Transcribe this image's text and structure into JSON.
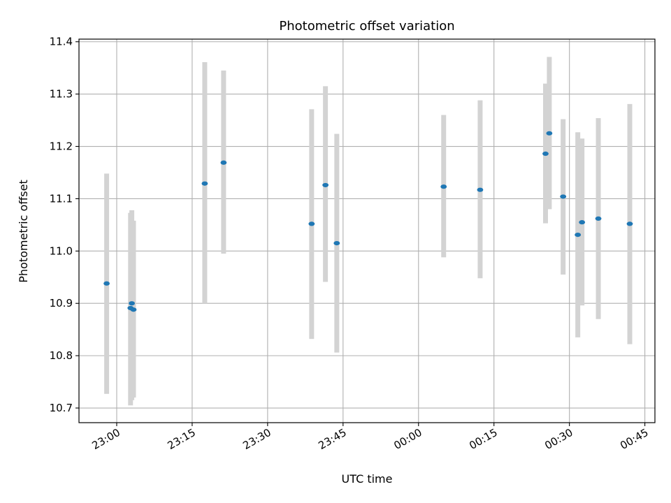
{
  "chart_data": {
    "type": "scatter",
    "title": "Photometric offset variation",
    "xlabel": "UTC time",
    "ylabel": "Photometric offset",
    "x_axis_kind": "time",
    "xlim": [
      "22:52:30",
      "00:47:00"
    ],
    "ylim": [
      10.672,
      11.405
    ],
    "x_ticks": [
      "23:00",
      "23:15",
      "23:30",
      "23:45",
      "00:00",
      "00:15",
      "00:30",
      "00:45"
    ],
    "y_ticks": [
      10.7,
      10.8,
      10.9,
      11.0,
      11.1,
      11.2,
      11.3,
      11.4
    ],
    "y_tick_labels": [
      "10.7",
      "10.8",
      "10.9",
      "11.0",
      "11.1",
      "11.2",
      "11.3",
      "11.4"
    ],
    "grid": true,
    "colors": {
      "point": "#1f77b4",
      "errorbar": "#d3d3d3",
      "grid": "#b0b0b0",
      "axes": "#000000"
    },
    "points": [
      {
        "time": "22:58:00",
        "y": 10.938,
        "y_low": 10.727,
        "y_high": 11.148
      },
      {
        "time": "23:02:45",
        "y": 10.891,
        "y_low": 10.705,
        "y_high": 11.073
      },
      {
        "time": "23:03:00",
        "y": 10.9,
        "y_low": 10.715,
        "y_high": 11.078
      },
      {
        "time": "23:03:20",
        "y": 10.888,
        "y_low": 10.72,
        "y_high": 11.058
      },
      {
        "time": "23:17:30",
        "y": 11.129,
        "y_low": 10.9,
        "y_high": 11.361
      },
      {
        "time": "23:21:15",
        "y": 11.169,
        "y_low": 10.995,
        "y_high": 11.345
      },
      {
        "time": "23:38:45",
        "y": 11.052,
        "y_low": 10.832,
        "y_high": 11.271
      },
      {
        "time": "23:41:30",
        "y": 11.126,
        "y_low": 10.941,
        "y_high": 11.315
      },
      {
        "time": "23:43:45",
        "y": 11.015,
        "y_low": 10.806,
        "y_high": 11.224
      },
      {
        "time": "00:05:00",
        "y": 11.123,
        "y_low": 10.988,
        "y_high": 11.26
      },
      {
        "time": "00:12:15",
        "y": 11.117,
        "y_low": 10.948,
        "y_high": 11.288
      },
      {
        "time": "00:25:15",
        "y": 11.186,
        "y_low": 11.053,
        "y_high": 11.32
      },
      {
        "time": "00:26:00",
        "y": 11.225,
        "y_low": 11.08,
        "y_high": 11.371
      },
      {
        "time": "00:28:45",
        "y": 11.104,
        "y_low": 10.955,
        "y_high": 11.252
      },
      {
        "time": "00:31:40",
        "y": 11.031,
        "y_low": 10.835,
        "y_high": 11.227
      },
      {
        "time": "00:32:30",
        "y": 11.055,
        "y_low": 10.896,
        "y_high": 11.215
      },
      {
        "time": "00:35:45",
        "y": 11.062,
        "y_low": 10.87,
        "y_high": 11.254
      },
      {
        "time": "00:42:00",
        "y": 11.052,
        "y_low": 10.822,
        "y_high": 11.281
      }
    ]
  }
}
